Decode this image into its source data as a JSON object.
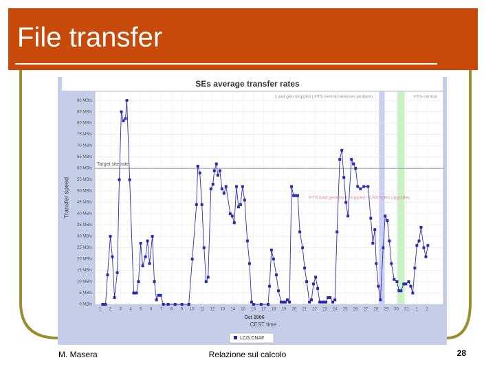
{
  "slide": {
    "title": "File transfer",
    "footer_left": "M. Masera",
    "footer_center": "Relazione sul calcolo",
    "page_number": "28"
  },
  "chart_data": {
    "type": "line",
    "title": "SEs average transfer rates",
    "x_label": "CEST time",
    "x_sublabel": "Oct 2006",
    "y_label": "Transfer speed",
    "x": [
      1.27,
      1.54,
      1.74,
      2.01,
      2.21,
      2.42,
      2.69,
      2.89,
      3.09,
      3.29,
      3.49,
      3.63,
      3.9,
      4.3,
      4.57,
      4.77,
      4.98,
      5.18,
      5.45,
      5.65,
      5.85,
      6.12,
      6.32,
      6.53,
      6.73,
      6.93,
      7.2,
      7.67,
      8.35,
      9.02,
      9.69,
      10.03,
      10.44,
      10.57,
      10.77,
      10.97,
      11.18,
      11.38,
      11.58,
      11.85,
      12.05,
      12.19,
      12.39,
      12.53,
      12.73,
      12.93,
      13.13,
      13.33,
      13.74,
      13.94,
      14.14,
      14.35,
      14.55,
      14.75,
      14.95,
      15.15,
      15.42,
      15.63,
      15.83,
      16.03,
      16.77,
      17.45,
      17.58,
      17.78,
      17.98,
      18.25,
      18.46,
      18.73,
      18.93,
      19.13,
      19.33,
      19.54,
      19.74,
      19.94,
      20.14,
      20.34,
      20.55,
      20.82,
      21.02,
      21.22,
      21.49,
      21.69,
      21.89,
      22.1,
      22.3,
      22.5,
      22.7,
      22.91,
      23.11,
      23.31,
      23.51,
      23.78,
      23.98,
      24.19,
      24.46,
      24.66,
      24.86,
      25.06,
      25.26,
      25.6,
      25.8,
      26.01,
      26.21,
      26.48,
      26.81,
      27.22,
      27.49,
      27.69,
      27.89,
      28.03,
      28.23,
      28.43,
      28.7,
      28.9,
      29.11,
      29.31,
      29.51,
      29.78,
      30.05,
      30.25,
      30.45,
      30.72,
      30.93,
      31.2,
      31.4,
      31.6,
      31.8,
      32.0,
      32.21,
      32.41,
      32.68,
      32.88,
      33.08
    ],
    "series": [
      {
        "name": "LCG.CNAF",
        "color": "#2b2bb0",
        "values": [
          0,
          0,
          13,
          30,
          21,
          3,
          14,
          55,
          85,
          81,
          82,
          90,
          55,
          5,
          5,
          10,
          27,
          17,
          21,
          28,
          18,
          30,
          10,
          2,
          4,
          4,
          0,
          0,
          0,
          0,
          0,
          20,
          44,
          61,
          58,
          44,
          25,
          10,
          12,
          51,
          53,
          59,
          62,
          57,
          59,
          51,
          49,
          52,
          40,
          39,
          36,
          52,
          43,
          44,
          52,
          46,
          28,
          18,
          1,
          0,
          0,
          0,
          8,
          24,
          20,
          13,
          6,
          1,
          1,
          1,
          2,
          1,
          52,
          48,
          48,
          48,
          32,
          25,
          16,
          10,
          1,
          2,
          9,
          12,
          7,
          1,
          1,
          1,
          1,
          3,
          3,
          1,
          2,
          32,
          64,
          68,
          56,
          45,
          39,
          64,
          62,
          60,
          52,
          51,
          52,
          52,
          38,
          27,
          33,
          18,
          8,
          2,
          25,
          39,
          37,
          28,
          18,
          11,
          10,
          6,
          6,
          9,
          9,
          10,
          8,
          5,
          16,
          26,
          28,
          34,
          25,
          21,
          26
        ]
      }
    ],
    "xlim": [
      0.5,
      34.6
    ],
    "xticks": [
      1,
      2,
      3,
      4,
      5,
      6,
      7,
      8,
      9,
      10,
      11,
      12,
      13,
      14,
      15,
      16,
      17,
      18,
      19,
      20,
      21,
      22,
      23,
      24,
      25,
      26,
      27,
      28,
      29,
      30,
      31,
      {
        "value": 32,
        "label": "1"
      },
      {
        "value": 33,
        "label": "2"
      }
    ],
    "ylim": [
      0,
      94
    ],
    "yticks": [
      {
        "value": 0,
        "label": "0 MB/s"
      },
      {
        "value": 5,
        "label": "5 MB/s"
      },
      {
        "value": 10,
        "label": "10 MB/s"
      },
      {
        "value": 15,
        "label": "15 MB/s"
      },
      {
        "value": 20,
        "label": "20 MB/s"
      },
      {
        "value": 25,
        "label": "25 MB/s"
      },
      {
        "value": 30,
        "label": "30 MB/s"
      },
      {
        "value": 35,
        "label": "35 MB/s"
      },
      {
        "value": 40,
        "label": "40 MB/s"
      },
      {
        "value": 45,
        "label": "45 MB/s"
      },
      {
        "value": 50,
        "label": "50 MB/s"
      },
      {
        "value": 55,
        "label": "55 MB/s"
      },
      {
        "value": 60,
        "label": "60 MB/s"
      },
      {
        "value": 65,
        "label": "65 MB/s"
      },
      {
        "value": 70,
        "label": "70 MB/s"
      },
      {
        "value": 75,
        "label": "75 MB/s"
      },
      {
        "value": 80,
        "label": "80 MB/s"
      },
      {
        "value": 85,
        "label": "85 MB/s"
      },
      {
        "value": 90,
        "label": "90 MB/s"
      }
    ],
    "grid": true,
    "reference_line": {
      "value": 60,
      "label": "Target site rate"
    },
    "bands": [
      {
        "from": 28.3,
        "to": 28.85,
        "color": "#c9cff2"
      },
      {
        "from": 30.1,
        "to": 30.8,
        "color": "#c9f2c2"
      }
    ],
    "annotations": [
      "Load gen stopped | FTS central services problem",
      "FTS central",
      "FTS load generator stopped - CASTOR2 upgrades"
    ],
    "legend": "bottom"
  }
}
